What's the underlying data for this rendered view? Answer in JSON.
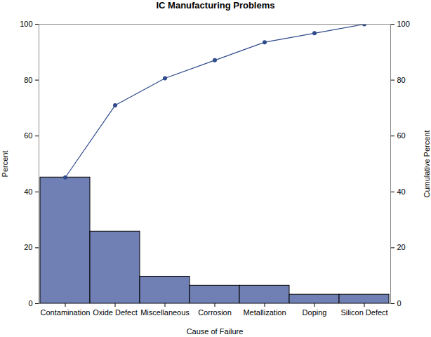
{
  "chart_data": {
    "type": "bar",
    "title": "IC Manufacturing Problems",
    "xlabel": "Cause of Failure",
    "ylabel": "Percent",
    "y2label": "Cumulative Percent",
    "categories": [
      "Contamination",
      "Oxide Defect",
      "Miscellaneous",
      "Corrosion",
      "Metallization",
      "Doping",
      "Silicon Defect"
    ],
    "series": [
      {
        "type": "bar",
        "color": "#7080b4",
        "values": [
          45.16,
          25.81,
          9.68,
          6.45,
          6.45,
          3.23,
          3.23
        ]
      },
      {
        "type": "line",
        "axis": "y2",
        "color": "#2f4b8c",
        "marker": "circle",
        "values": [
          45.16,
          70.97,
          80.65,
          87.1,
          93.55,
          96.77,
          100
        ]
      }
    ],
    "ylim": [
      0,
      100
    ],
    "yticks": [
      0,
      20,
      40,
      60,
      80,
      100
    ],
    "y2lim": [
      0,
      100
    ],
    "y2ticks": [
      0,
      20,
      40,
      60,
      80,
      100
    ],
    "grid": false
  }
}
